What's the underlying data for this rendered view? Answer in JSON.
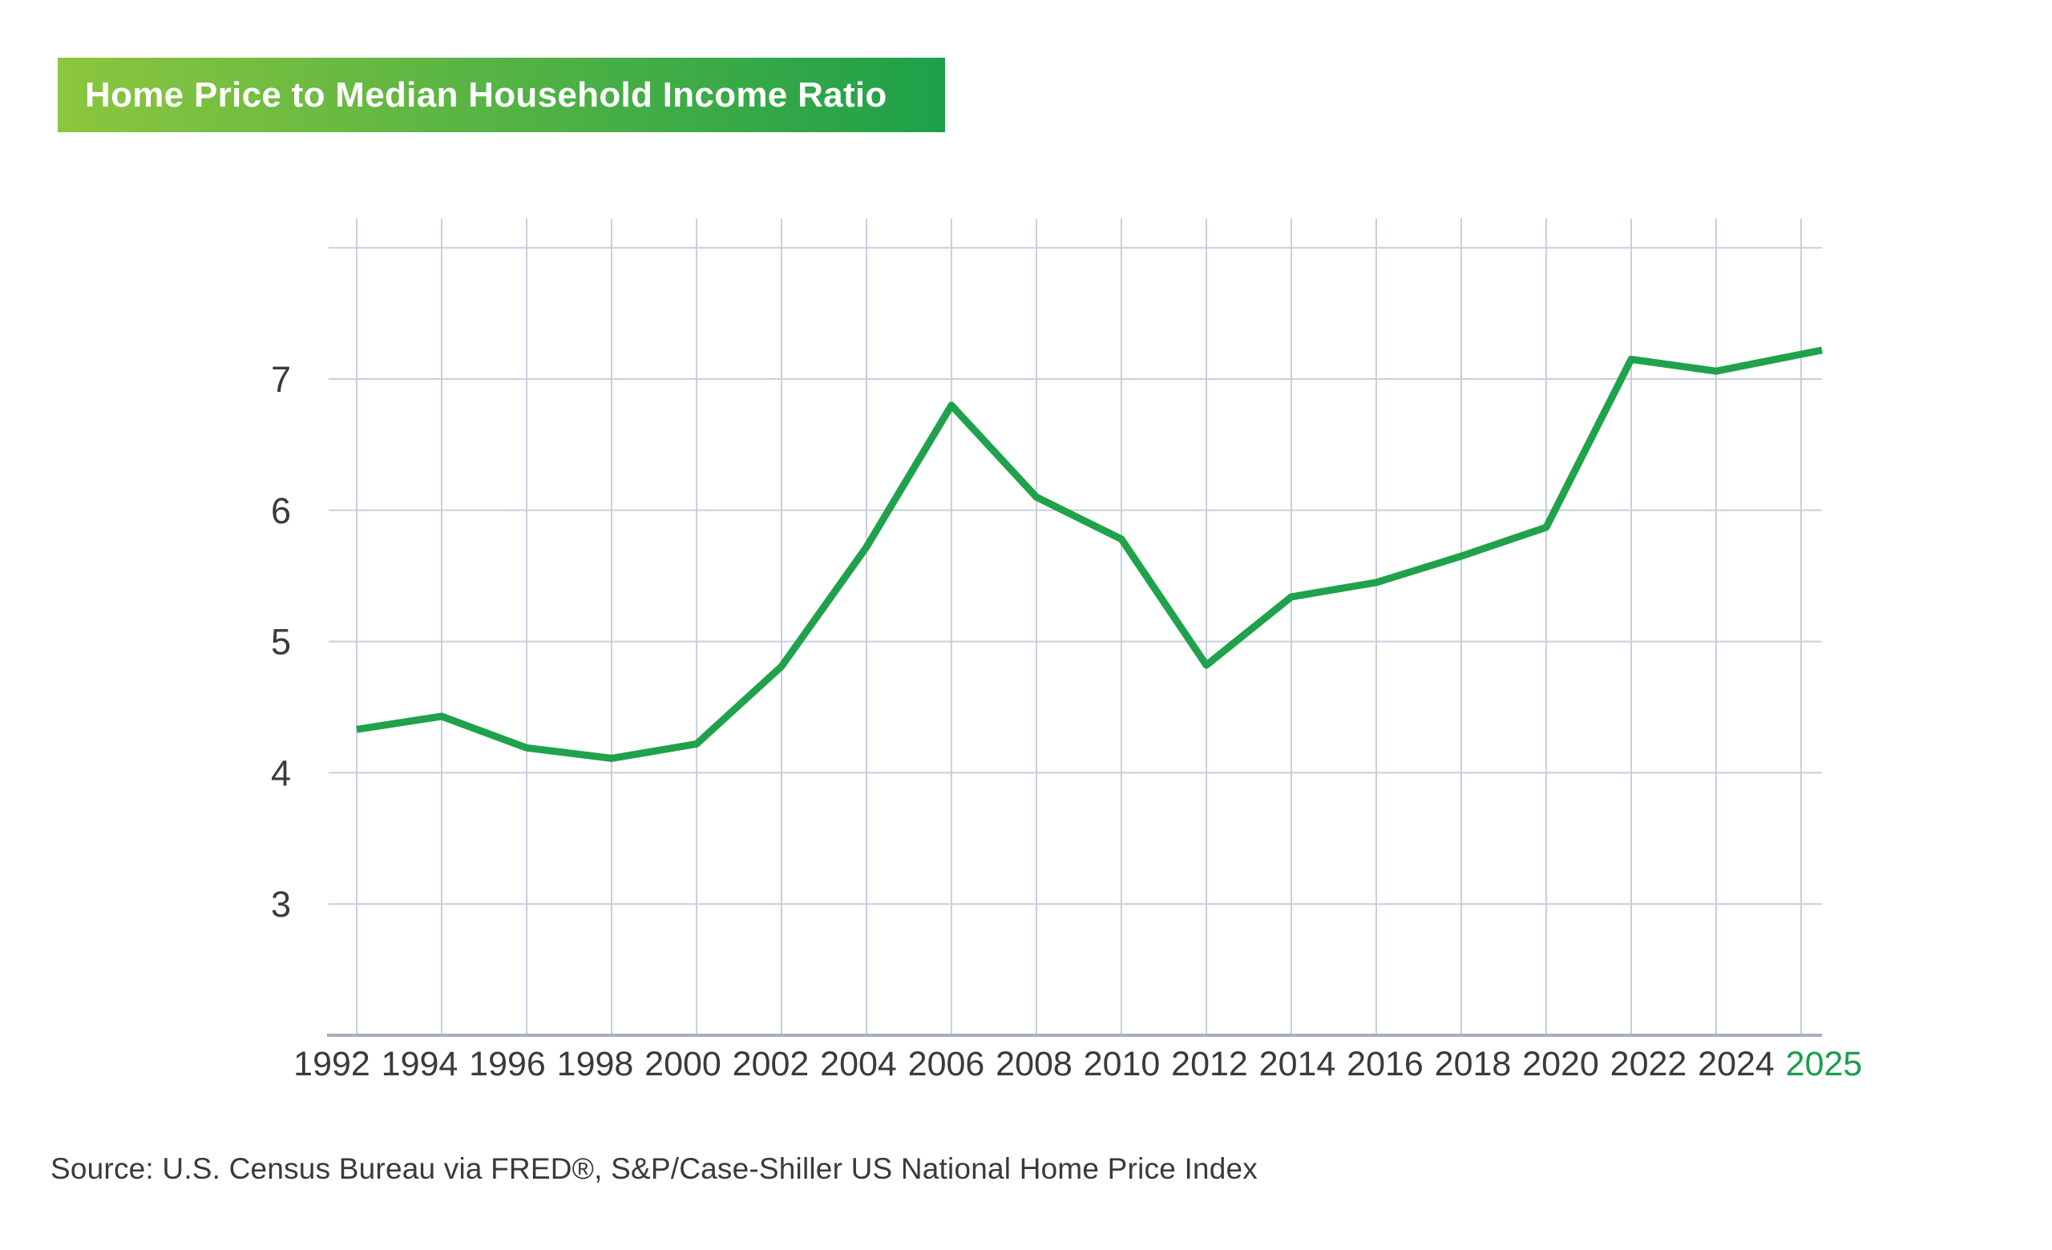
{
  "title_bar": {
    "label": "Home Price to Median Household Income Ratio",
    "gradient_from": "#8CC63E",
    "gradient_to": "#1EA04A",
    "text_color": "#ffffff"
  },
  "source_note": "Source: U.S. Census Bureau via FRED®, S&P/Case-Shiller US National Home Price Index",
  "chart_data": {
    "type": "line",
    "title": "Home Price to Median Household Income Ratio",
    "x": [
      1992,
      1994,
      1996,
      1998,
      2000,
      2002,
      2004,
      2006,
      2008,
      2010,
      2012,
      2014,
      2016,
      2018,
      2020,
      2022,
      2024,
      2025
    ],
    "values": [
      4.33,
      4.43,
      4.19,
      4.11,
      4.22,
      4.81,
      5.72,
      6.8,
      6.1,
      5.78,
      4.82,
      5.34,
      5.45,
      5.65,
      5.87,
      7.15,
      7.06,
      7.22
    ],
    "xlabel": "",
    "ylabel": "",
    "y_ticks": [
      "7",
      "6",
      "5",
      "4",
      "3"
    ],
    "y_tick_values": [
      7,
      6,
      5,
      4,
      3
    ],
    "y_gridline_values": [
      8,
      7,
      6,
      5,
      4,
      3
    ],
    "x_gridline_years": [
      1992,
      1994,
      1996,
      1998,
      2000,
      2002,
      2004,
      2006,
      2008,
      2010,
      2012,
      2014,
      2016,
      2018,
      2020,
      2022,
      2024,
      2026
    ],
    "x_tick_labels": [
      "1992",
      "1994",
      "1996",
      "1998",
      "2000",
      "2002",
      "2004",
      "2006",
      "2008",
      "2010",
      "2012",
      "2014",
      "2016",
      "2018",
      "2020",
      "2022",
      "2024",
      "2025"
    ],
    "highlight_label": "2025",
    "highlight_label_color": "#1A9E4B",
    "ylim": [
      2,
      8.2
    ],
    "xlim": [
      1992,
      2026
    ],
    "grid": true,
    "legend": false,
    "line_color": "#1FA24B",
    "grid_color": "#C9CEDE",
    "axis_color": "#A7AEC6",
    "tick_text_color": "#3A3A3C",
    "pin_last_point_to_axis_end": true
  }
}
